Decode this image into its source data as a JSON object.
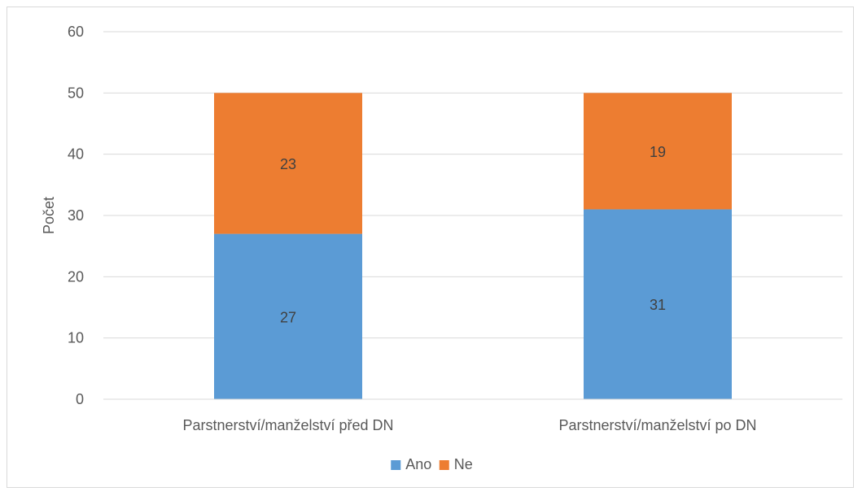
{
  "chart_data": {
    "type": "bar",
    "stacked": true,
    "categories": [
      "Parstnerství/manželství před DN",
      "Parstnerství/manželství po DN"
    ],
    "series": [
      {
        "name": "Ano",
        "values": [
          27,
          31
        ],
        "color": "#5b9bd5"
      },
      {
        "name": "Ne",
        "values": [
          23,
          19
        ],
        "color": "#ed7d31"
      }
    ],
    "title": "",
    "xlabel": "",
    "ylabel": "Počet",
    "ylim": [
      0,
      60
    ],
    "yticks": [
      0,
      10,
      20,
      30,
      40,
      50,
      60
    ],
    "grid": true,
    "legend": "bottom",
    "data_labels": true
  }
}
